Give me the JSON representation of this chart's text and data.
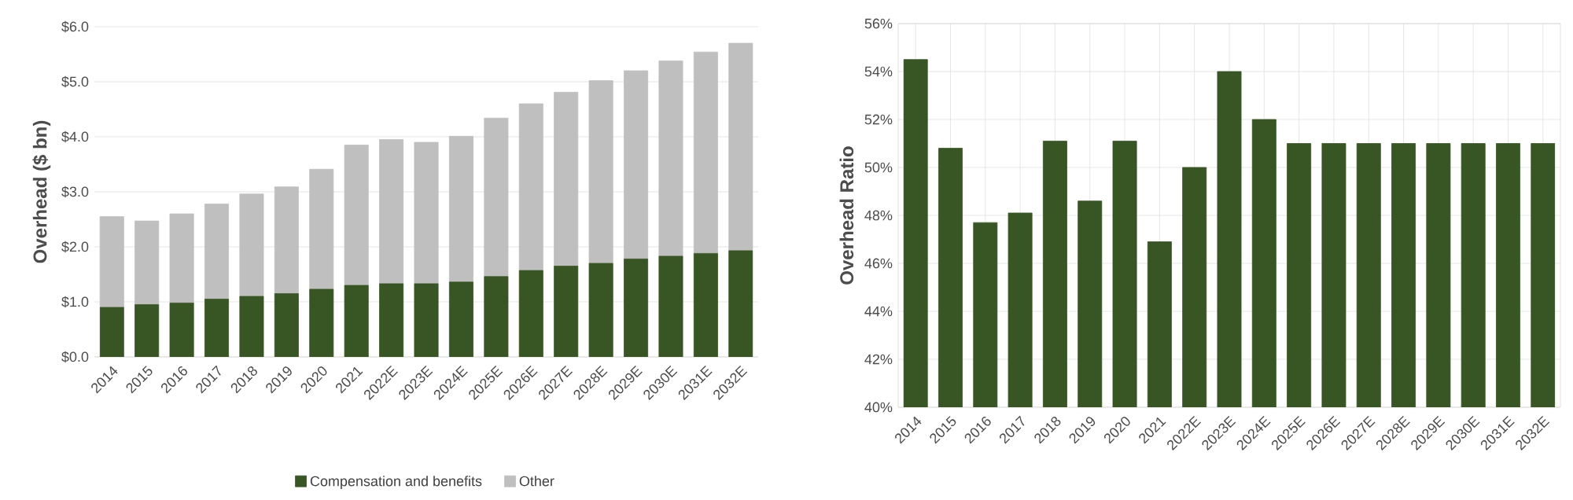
{
  "chart_data": [
    {
      "type": "bar",
      "ylabel": "Overhead ($ bn)",
      "stacked": true,
      "grid": "y",
      "legend": "bottom",
      "categories": [
        "2014",
        "2015",
        "2016",
        "2017",
        "2018",
        "2019",
        "2020",
        "2021",
        "2022E",
        "2023E",
        "2024E",
        "2025E",
        "2026E",
        "2027E",
        "2028E",
        "2029E",
        "2030E",
        "2031E",
        "2032E"
      ],
      "series": [
        {
          "name": "Compensation and benefits",
          "color": "#375623",
          "values": [
            0.9,
            0.95,
            0.98,
            1.05,
            1.1,
            1.15,
            1.23,
            1.3,
            1.33,
            1.33,
            1.36,
            1.46,
            1.57,
            1.65,
            1.7,
            1.78,
            1.83,
            1.88,
            1.93
          ]
        },
        {
          "name": "Other",
          "color": "#bfbfbf",
          "values": [
            1.65,
            1.52,
            1.62,
            1.73,
            1.86,
            1.94,
            2.18,
            2.55,
            2.62,
            2.57,
            2.65,
            2.88,
            3.03,
            3.16,
            3.32,
            3.42,
            3.55,
            3.66,
            3.77
          ]
        }
      ],
      "ylim": [
        0,
        6
      ],
      "yticks": [
        {
          "value": 0,
          "label": "$0.0"
        },
        {
          "value": 1,
          "label": "$1.0"
        },
        {
          "value": 2,
          "label": "$2.0"
        },
        {
          "value": 3,
          "label": "$3.0"
        },
        {
          "value": 4,
          "label": "$4.0"
        },
        {
          "value": 5,
          "label": "$5.0"
        },
        {
          "value": 6,
          "label": "$6.0"
        }
      ]
    },
    {
      "type": "bar",
      "ylabel": "Overhead Ratio",
      "grid": true,
      "categories": [
        "2014",
        "2015",
        "2016",
        "2017",
        "2018",
        "2019",
        "2020",
        "2021",
        "2022E",
        "2023E",
        "2024E",
        "2025E",
        "2026E",
        "2027E",
        "2028E",
        "2029E",
        "2030E",
        "2031E",
        "2032E"
      ],
      "series": [
        {
          "color": "#375623",
          "values": [
            54.5,
            50.8,
            47.7,
            48.1,
            51.1,
            48.6,
            51.1,
            46.9,
            50.0,
            54.0,
            52.0,
            51,
            51,
            51,
            51,
            51,
            51,
            51,
            51
          ]
        }
      ],
      "ylim": [
        40,
        56
      ],
      "yticks": [
        {
          "value": 40,
          "label": "40%"
        },
        {
          "value": 42,
          "label": "42%"
        },
        {
          "value": 44,
          "label": "44%"
        },
        {
          "value": 46,
          "label": "46%"
        },
        {
          "value": 48,
          "label": "48%"
        },
        {
          "value": 50,
          "label": "50%"
        },
        {
          "value": 52,
          "label": "52%"
        },
        {
          "value": 54,
          "label": "54%"
        },
        {
          "value": 56,
          "label": "56%"
        }
      ]
    }
  ]
}
